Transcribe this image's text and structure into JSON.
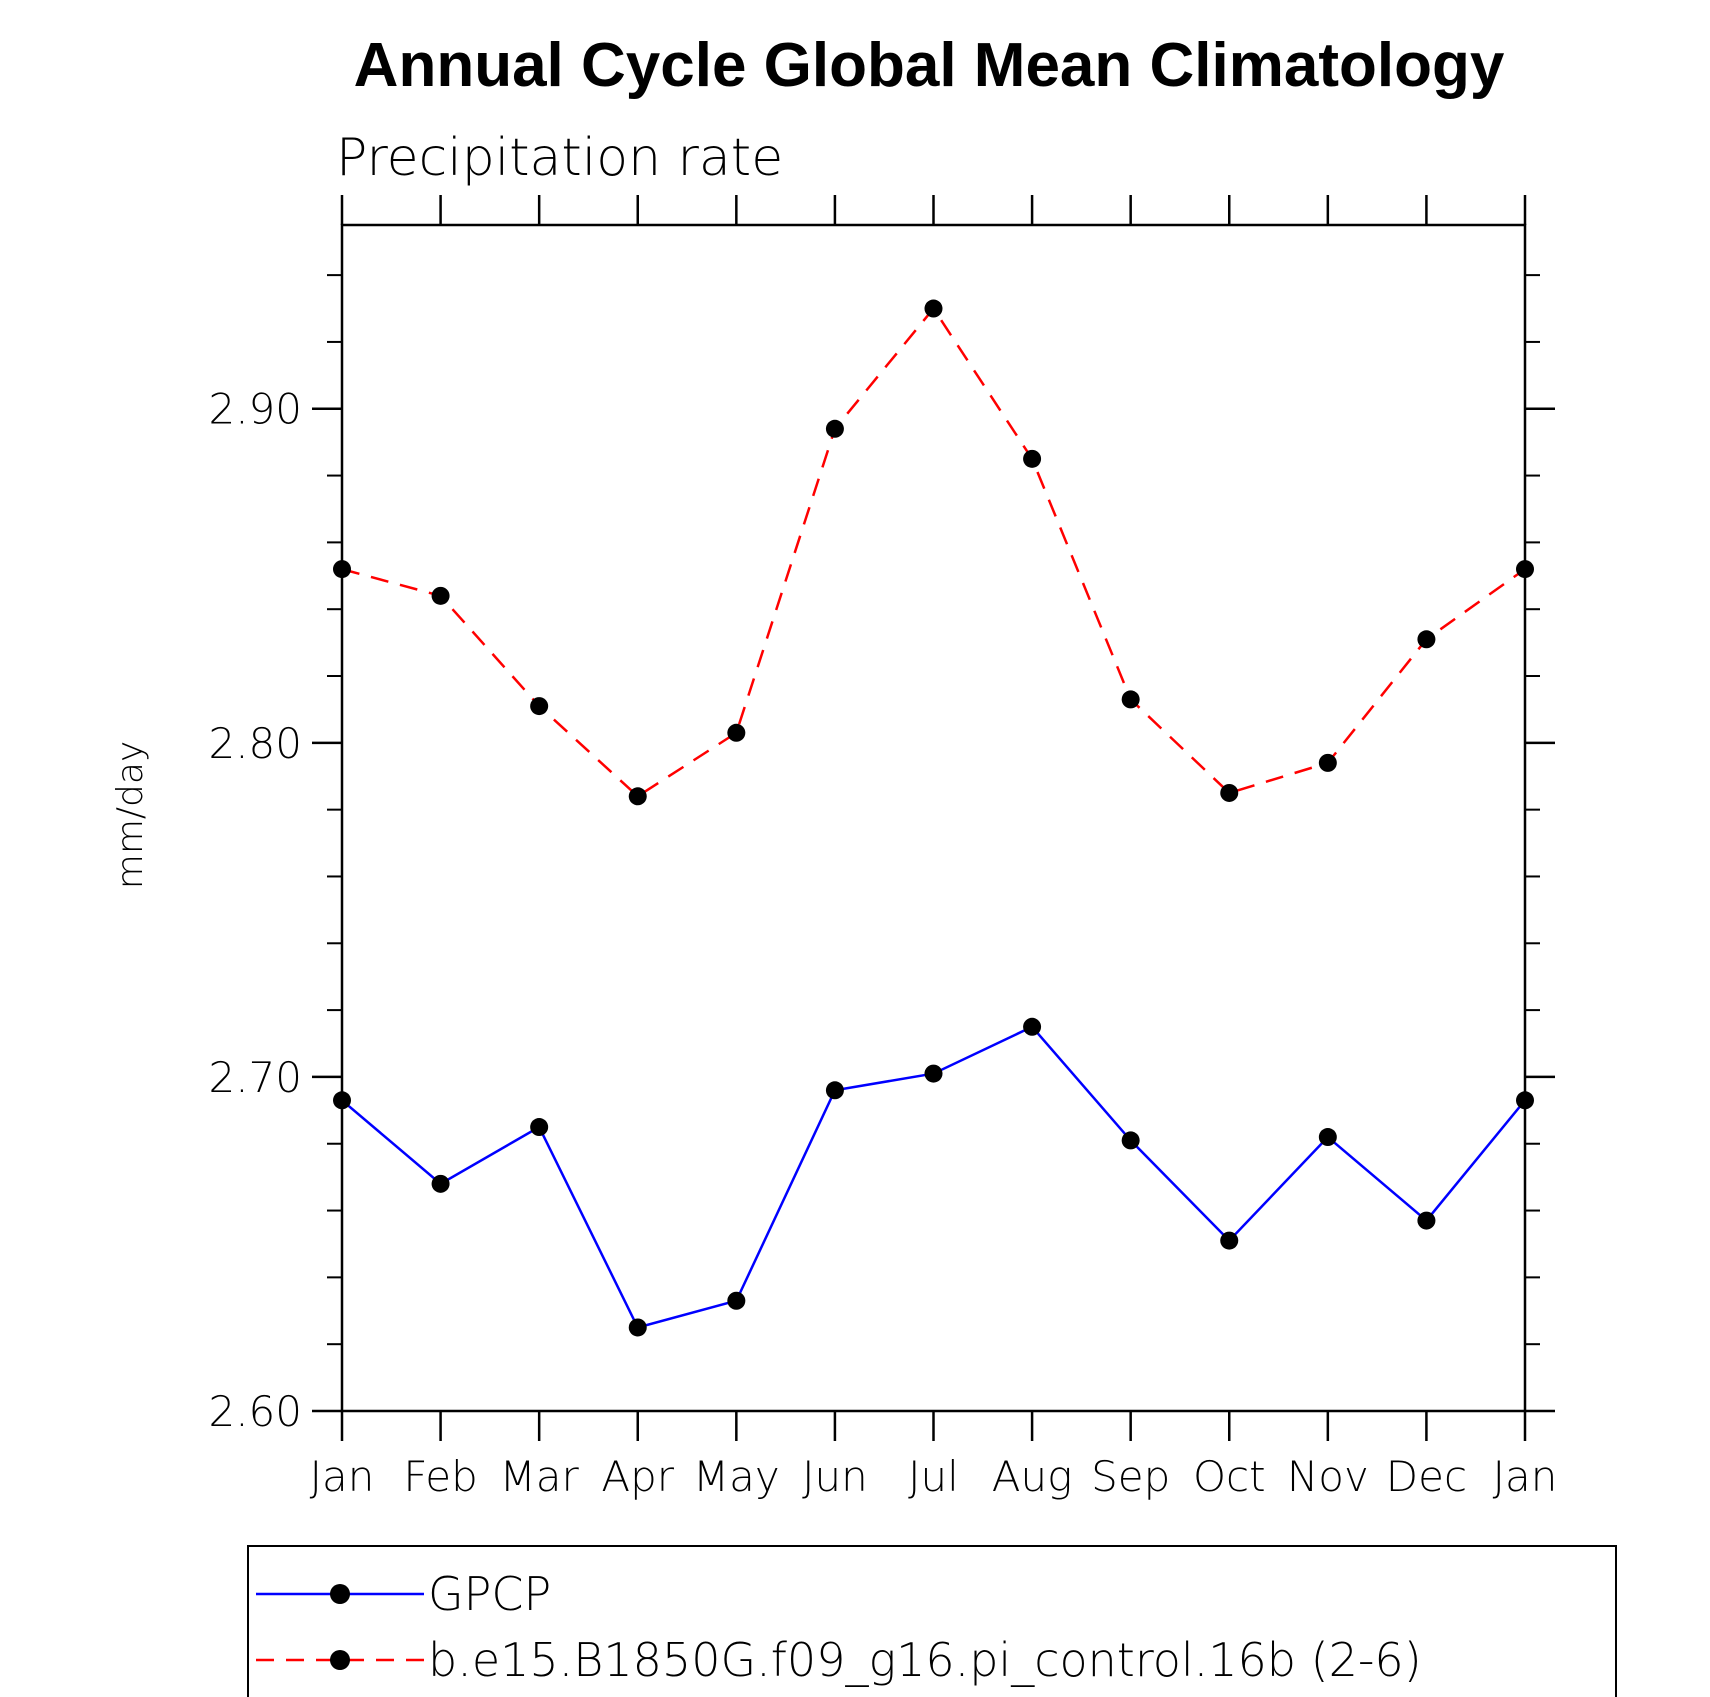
{
  "chart_data": {
    "type": "line",
    "title": "Annual Cycle Global Mean Climatology",
    "subtitle": "Precipitation rate",
    "xlabel": "",
    "ylabel": "mm/day",
    "categories": [
      "Jan",
      "Feb",
      "Mar",
      "Apr",
      "May",
      "Jun",
      "Jul",
      "Aug",
      "Sep",
      "Oct",
      "Nov",
      "Dec",
      "Jan"
    ],
    "ylim": [
      2.6,
      2.955
    ],
    "yticks": [
      "2.60",
      "2.70",
      "2.80",
      "2.90"
    ],
    "ytick_values": [
      2.6,
      2.7,
      2.8,
      2.9
    ],
    "minor_tick_step": 0.02,
    "grid": false,
    "legend_position": "bottom",
    "series": [
      {
        "name": "GPCP",
        "color": "#0000ff",
        "style": "solid",
        "marker": "filled-circle",
        "values": [
          2.693,
          2.668,
          2.685,
          2.625,
          2.633,
          2.696,
          2.701,
          2.715,
          2.681,
          2.651,
          2.682,
          2.657,
          2.693
        ]
      },
      {
        "name": "b.e15.B1850G.f09_g16.pi_control.16b (2-6)",
        "color": "#ff0000",
        "style": "dashed",
        "marker": "filled-circle",
        "values": [
          2.852,
          2.844,
          2.811,
          2.784,
          2.803,
          2.894,
          2.93,
          2.885,
          2.813,
          2.785,
          2.794,
          2.831,
          2.852
        ]
      }
    ]
  }
}
